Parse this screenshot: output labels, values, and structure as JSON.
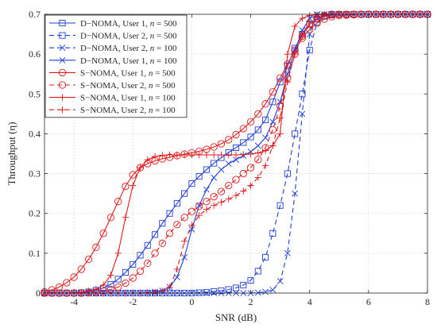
{
  "chart_data": {
    "type": "line",
    "title": "",
    "xlabel": "SNR (dB)",
    "ylabel": "Throughput (η)",
    "xlim": [
      -5,
      8
    ],
    "ylim": [
      0,
      0.7
    ],
    "xticks": [
      -4,
      -2,
      0,
      2,
      4,
      6,
      8
    ],
    "xtick_labels": [
      "-4",
      "-2",
      "0",
      "2",
      "4",
      "6",
      "8"
    ],
    "yticks": [
      0,
      0.1,
      0.2,
      0.3,
      0.4,
      0.5,
      0.6,
      0.7
    ],
    "ytick_labels": [
      "0",
      "0.1",
      "0.2",
      "0.3",
      "0.4",
      "0.5",
      "0.6",
      "0.7"
    ],
    "grid": true,
    "legend_position": "top-left",
    "x": [
      -5,
      -4.75,
      -4.5,
      -4.25,
      -4,
      -3.75,
      -3.5,
      -3.25,
      -3,
      -2.75,
      -2.5,
      -2.25,
      -2,
      -1.75,
      -1.5,
      -1.25,
      -1,
      -0.75,
      -0.5,
      -0.25,
      0,
      0.25,
      0.5,
      0.75,
      1,
      1.25,
      1.5,
      1.75,
      2,
      2.25,
      2.5,
      2.75,
      3,
      3.25,
      3.5,
      3.75,
      4,
      4.25,
      4.5,
      4.75,
      5,
      5.25,
      5.5,
      5.75,
      6,
      6.25,
      6.5,
      6.75,
      7,
      7.25,
      7.5,
      7.75,
      8
    ],
    "series": [
      {
        "name": "D−NOMA, User 1, n = 500",
        "label_prefix": "D−NOMA, User 1, ",
        "label_var": "n",
        "label_suffix": " = 500",
        "color": "#1f3fd6",
        "dash": "solid",
        "marker": "square",
        "values": [
          0,
          0,
          0,
          0,
          0,
          0.001,
          0.003,
          0.007,
          0.013,
          0.022,
          0.035,
          0.052,
          0.072,
          0.095,
          0.12,
          0.147,
          0.175,
          0.2,
          0.225,
          0.25,
          0.275,
          0.293,
          0.31,
          0.326,
          0.34,
          0.353,
          0.365,
          0.378,
          0.392,
          0.41,
          0.435,
          0.48,
          0.53,
          0.57,
          0.615,
          0.65,
          0.675,
          0.688,
          0.695,
          0.698,
          0.7,
          0.7,
          0.7,
          0.7,
          0.7,
          0.7,
          0.7,
          0.7,
          0.7,
          0.7,
          0.7,
          0.7,
          0.7
        ]
      },
      {
        "name": "D−NOMA, User 2, n = 500",
        "label_prefix": "D−NOMA, User 2, ",
        "label_var": "n",
        "label_suffix": " = 500",
        "color": "#1f3fd6",
        "dash": "dashed",
        "marker": "square",
        "values": [
          0,
          0,
          0,
          0,
          0,
          0,
          0,
          0,
          0,
          0,
          0,
          0,
          0,
          0,
          0,
          0,
          0,
          0,
          0,
          0,
          0,
          0.001,
          0.002,
          0.004,
          0.006,
          0.009,
          0.013,
          0.02,
          0.032,
          0.055,
          0.09,
          0.15,
          0.22,
          0.3,
          0.4,
          0.5,
          0.61,
          0.68,
          0.695,
          0.7,
          0.7,
          0.7,
          0.7,
          0.7,
          0.7,
          0.7,
          0.7,
          0.7,
          0.7,
          0.7,
          0.7,
          0.7,
          0.7
        ]
      },
      {
        "name": "D−NOMA, User 2, n = 100",
        "label_prefix": "D−NOMA, User 2, ",
        "label_var": "n",
        "label_suffix": " = 100",
        "color": "#1f3fd6",
        "dash": "dashed",
        "marker": "x",
        "values": [
          0,
          0,
          0,
          0,
          0,
          0,
          0,
          0,
          0,
          0,
          0,
          0,
          0,
          0,
          0,
          0,
          0,
          0,
          0,
          0,
          0,
          0,
          0,
          0,
          0,
          0,
          0,
          0,
          0,
          0.001,
          0.003,
          0.008,
          0.03,
          0.1,
          0.25,
          0.45,
          0.65,
          0.7,
          0.7,
          0.7,
          0.7,
          0.7,
          0.7,
          0.7,
          0.7,
          0.7,
          0.7,
          0.7,
          0.7,
          0.7,
          0.7,
          0.7,
          0.7
        ]
      },
      {
        "name": "D−NOMA, User 1, n = 100",
        "label_prefix": "D−NOMA, User 1, ",
        "label_var": "n",
        "label_suffix": " = 100",
        "color": "#1f3fd6",
        "dash": "solid",
        "marker": "x",
        "values": [
          0,
          0,
          0,
          0,
          0,
          0,
          0,
          0,
          0,
          0,
          0,
          0,
          0,
          0,
          0.001,
          0.003,
          0.006,
          0.015,
          0.04,
          0.09,
          0.16,
          0.22,
          0.26,
          0.29,
          0.31,
          0.325,
          0.335,
          0.345,
          0.355,
          0.37,
          0.39,
          0.43,
          0.48,
          0.55,
          0.61,
          0.66,
          0.69,
          0.698,
          0.7,
          0.7,
          0.7,
          0.7,
          0.7,
          0.7,
          0.7,
          0.7,
          0.7,
          0.7,
          0.7,
          0.7,
          0.7,
          0.7,
          0.7
        ]
      },
      {
        "name": "S−NOMA, User 1, n = 500",
        "label_prefix": "S−NOMA, User 1, ",
        "label_var": "n",
        "label_suffix": " = 500",
        "color": "#e01818",
        "dash": "solid",
        "marker": "circle",
        "values": [
          0.003,
          0.008,
          0.015,
          0.026,
          0.04,
          0.06,
          0.085,
          0.115,
          0.15,
          0.19,
          0.23,
          0.268,
          0.297,
          0.315,
          0.325,
          0.332,
          0.337,
          0.341,
          0.345,
          0.349,
          0.352,
          0.356,
          0.361,
          0.367,
          0.375,
          0.385,
          0.398,
          0.413,
          0.43,
          0.45,
          0.475,
          0.505,
          0.54,
          0.575,
          0.61,
          0.64,
          0.662,
          0.678,
          0.688,
          0.694,
          0.697,
          0.698,
          0.699,
          0.7,
          0.7,
          0.7,
          0.7,
          0.7,
          0.7,
          0.7,
          0.7,
          0.7,
          0.7
        ]
      },
      {
        "name": "S−NOMA, User 2, n = 500",
        "label_prefix": "S−NOMA, User 2, ",
        "label_var": "n",
        "label_suffix": " = 500",
        "color": "#e01818",
        "dash": "dashed",
        "marker": "circle",
        "values": [
          0,
          0,
          0,
          0,
          0,
          0,
          0.001,
          0.002,
          0.005,
          0.009,
          0.015,
          0.025,
          0.038,
          0.055,
          0.075,
          0.1,
          0.125,
          0.15,
          0.172,
          0.19,
          0.205,
          0.218,
          0.23,
          0.242,
          0.255,
          0.27,
          0.285,
          0.3,
          0.315,
          0.335,
          0.365,
          0.41,
          0.47,
          0.54,
          0.6,
          0.645,
          0.675,
          0.69,
          0.697,
          0.7,
          0.7,
          0.7,
          0.7,
          0.7,
          0.7,
          0.7,
          0.7,
          0.7,
          0.7,
          0.7,
          0.7,
          0.7,
          0.7
        ]
      },
      {
        "name": "S−NOMA, User 1, n = 100",
        "label_prefix": "S−NOMA, User 1, ",
        "label_var": "n",
        "label_suffix": " = 100",
        "color": "#e01818",
        "dash": "solid",
        "marker": "plus",
        "values": [
          0,
          0,
          0,
          0,
          0.001,
          0.002,
          0.005,
          0.01,
          0.02,
          0.045,
          0.1,
          0.19,
          0.27,
          0.315,
          0.335,
          0.343,
          0.346,
          0.347,
          0.347,
          0.347,
          0.347,
          0.347,
          0.347,
          0.347,
          0.347,
          0.347,
          0.347,
          0.348,
          0.349,
          0.352,
          0.358,
          0.37,
          0.4,
          0.6,
          0.67,
          0.69,
          0.697,
          0.699,
          0.7,
          0.7,
          0.7,
          0.7,
          0.7,
          0.7,
          0.7,
          0.7,
          0.7,
          0.7,
          0.7,
          0.7,
          0.7,
          0.7,
          0.7
        ]
      },
      {
        "name": "S−NOMA, User 2, n = 100",
        "label_prefix": "S−NOMA, User 2, ",
        "label_var": "n",
        "label_suffix": " = 100",
        "color": "#e01818",
        "dash": "dashed",
        "marker": "plus",
        "values": [
          0,
          0,
          0,
          0,
          0,
          0,
          0,
          0,
          0,
          0,
          0,
          0,
          0,
          0,
          0.001,
          0.002,
          0.005,
          0.015,
          0.06,
          0.13,
          0.17,
          0.195,
          0.21,
          0.22,
          0.228,
          0.236,
          0.245,
          0.256,
          0.27,
          0.29,
          0.32,
          0.37,
          0.44,
          0.53,
          0.6,
          0.65,
          0.68,
          0.693,
          0.698,
          0.7,
          0.7,
          0.7,
          0.7,
          0.7,
          0.7,
          0.7,
          0.7,
          0.7,
          0.7,
          0.7,
          0.7,
          0.7,
          0.7
        ]
      }
    ]
  }
}
